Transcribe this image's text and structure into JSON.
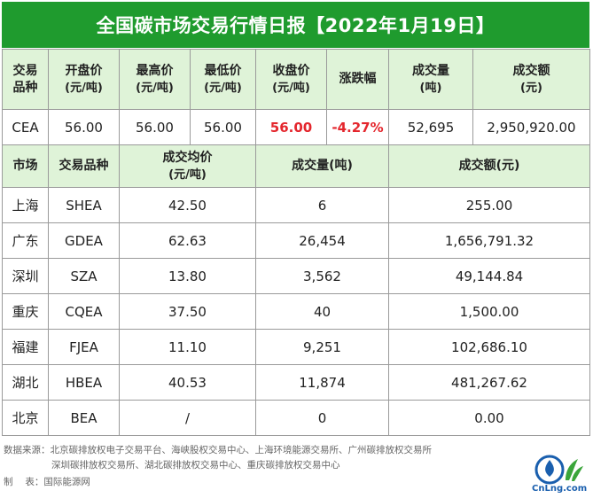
{
  "title": "全国碳市场交易行情日报【2022年1月19日】",
  "national": {
    "headers": [
      {
        "line1": "交易",
        "line2": "品种"
      },
      {
        "line1": "开盘价",
        "line2": "(元/吨)"
      },
      {
        "line1": "最高价",
        "line2": "(元/吨)"
      },
      {
        "line1": "最低价",
        "line2": "(元/吨)"
      },
      {
        "line1": "收盘价",
        "line2": "(元/吨)"
      },
      {
        "line1": "涨跌幅",
        "line2": ""
      },
      {
        "line1": "成交量",
        "line2": "(吨)"
      },
      {
        "line1": "成交额",
        "line2": "(元)"
      }
    ],
    "row": [
      "CEA",
      "56.00",
      "56.00",
      "56.00",
      "56.00",
      "-4.27%",
      "52,695",
      "2,950,920.00"
    ]
  },
  "regional": {
    "headers": {
      "market": "市场",
      "product": "交易品种",
      "avg_price": "成交均价",
      "avg_price_unit": "(元/吨)",
      "volume": "成交量(吨)",
      "amount": "成交额(元)"
    },
    "rows": [
      [
        "上海",
        "SHEA",
        "42.50",
        "6",
        "255.00"
      ],
      [
        "广东",
        "GDEA",
        "62.63",
        "26,454",
        "1,656,791.32"
      ],
      [
        "深圳",
        "SZA",
        "13.80",
        "3,562",
        "49,144.84"
      ],
      [
        "重庆",
        "CQEA",
        "37.50",
        "40",
        "1,500.00"
      ],
      [
        "福建",
        "FJEA",
        "11.10",
        "9,251",
        "102,686.10"
      ],
      [
        "湖北",
        "HBEA",
        "40.53",
        "11,874",
        "481,267.62"
      ],
      [
        "北京",
        "BEA",
        "/",
        "0",
        "0.00"
      ]
    ]
  },
  "footer": {
    "source_line1": "数据来源：北京碳排放权电子交易平台、海峡股权交易中心、上海环境能源交易所、广州碳排放权交易所",
    "source_line2": "深圳碳排放权交易所、湖北碳排放权交易中心、重庆碳排放权交易中心",
    "maker": "制　 表：国际能源网"
  },
  "logo": {
    "text": "CnLng.com",
    "accent": "#1a5fae",
    "green": "#3aa53a"
  }
}
